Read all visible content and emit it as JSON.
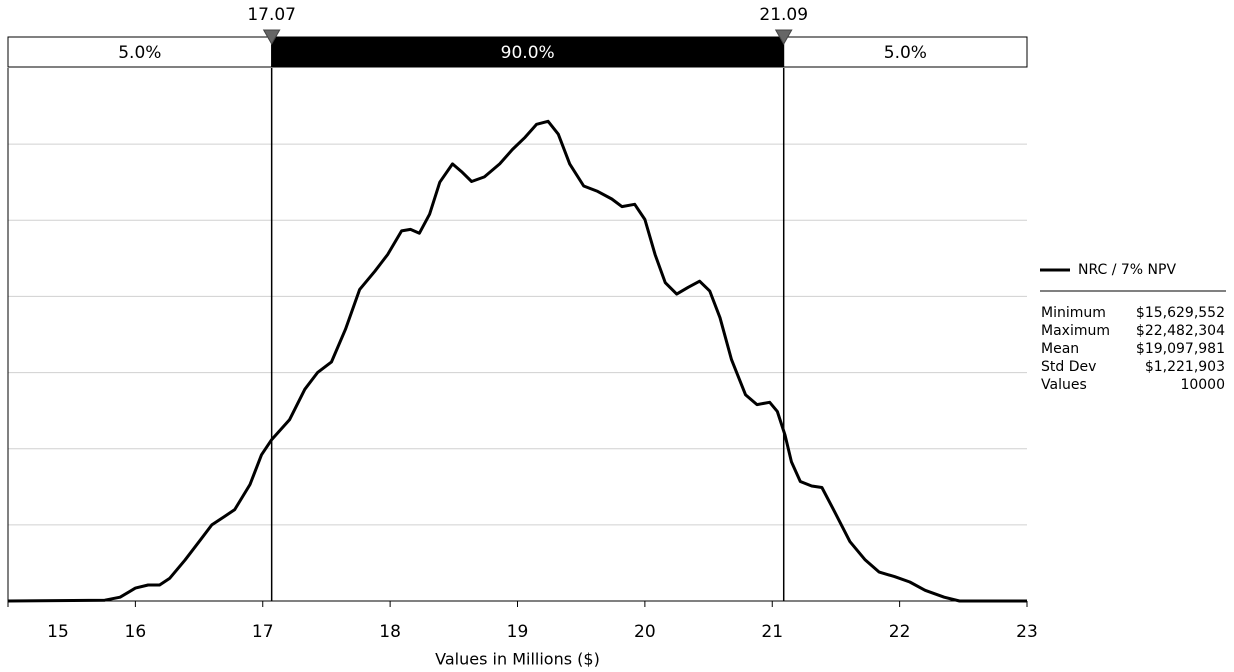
{
  "chart_data": {
    "type": "line",
    "xlabel": "Values in Millions ($)",
    "x": [
      15.0,
      15.76,
      15.88,
      16.0,
      16.1,
      16.19,
      16.27,
      16.39,
      16.51,
      16.6,
      16.7,
      16.78,
      16.9,
      16.99,
      17.07,
      17.21,
      17.33,
      17.43,
      17.54,
      17.65,
      17.76,
      17.88,
      17.98,
      18.09,
      18.16,
      18.23,
      18.31,
      18.39,
      18.49,
      18.56,
      18.64,
      18.74,
      18.86,
      18.96,
      19.06,
      19.15,
      19.24,
      19.32,
      19.41,
      19.52,
      19.63,
      19.74,
      19.82,
      19.92,
      20.0,
      20.08,
      20.16,
      20.25,
      20.34,
      20.43,
      20.51,
      20.59,
      20.68,
      20.79,
      20.88,
      20.98,
      21.04,
      21.1,
      21.15,
      21.22,
      21.31,
      21.39,
      21.49,
      21.61,
      21.73,
      21.84,
      21.96,
      22.08,
      22.2,
      22.35,
      22.47,
      23.0
    ],
    "series": [
      {
        "name": "NRC / 7% NPV",
        "color": "#000000",
        "values": [
          0,
          0.01,
          0.05,
          0.17,
          0.21,
          0.21,
          0.3,
          0.54,
          0.8,
          1.0,
          1.11,
          1.2,
          1.53,
          1.92,
          2.12,
          2.38,
          2.78,
          3.0,
          3.14,
          3.57,
          4.09,
          4.33,
          4.55,
          4.86,
          4.88,
          4.83,
          5.08,
          5.5,
          5.74,
          5.64,
          5.51,
          5.57,
          5.74,
          5.93,
          6.09,
          6.26,
          6.3,
          6.13,
          5.74,
          5.45,
          5.38,
          5.28,
          5.18,
          5.21,
          5.01,
          4.55,
          4.18,
          4.03,
          4.12,
          4.2,
          4.07,
          3.72,
          3.17,
          2.71,
          2.58,
          2.61,
          2.49,
          2.18,
          1.83,
          1.57,
          1.51,
          1.49,
          1.17,
          0.78,
          0.54,
          0.38,
          0.32,
          0.25,
          0.14,
          0.05,
          0,
          0
        ]
      }
    ],
    "xlim": [
      15,
      23
    ],
    "xticks": [
      15,
      16,
      17,
      18,
      19,
      20,
      21,
      22,
      23
    ],
    "ylim": [
      0,
      7
    ],
    "yticks": [
      1,
      2,
      3,
      4,
      5,
      6
    ],
    "grid": true,
    "delimiters": [
      17.07,
      21.09
    ],
    "regions": [
      {
        "value": 5,
        "label": "5.0%"
      },
      {
        "value": 90,
        "label": "90.0%"
      },
      {
        "value": 5,
        "label": "5.0%"
      }
    ],
    "legend": "right",
    "stats": [
      [
        "Minimum",
        "$15,629,552"
      ],
      [
        "Maximum",
        "$22,482,304"
      ],
      [
        "Mean",
        "$19,097,981"
      ],
      [
        "Std Dev",
        "$1,221,903"
      ],
      [
        "Values",
        "10000"
      ]
    ]
  }
}
